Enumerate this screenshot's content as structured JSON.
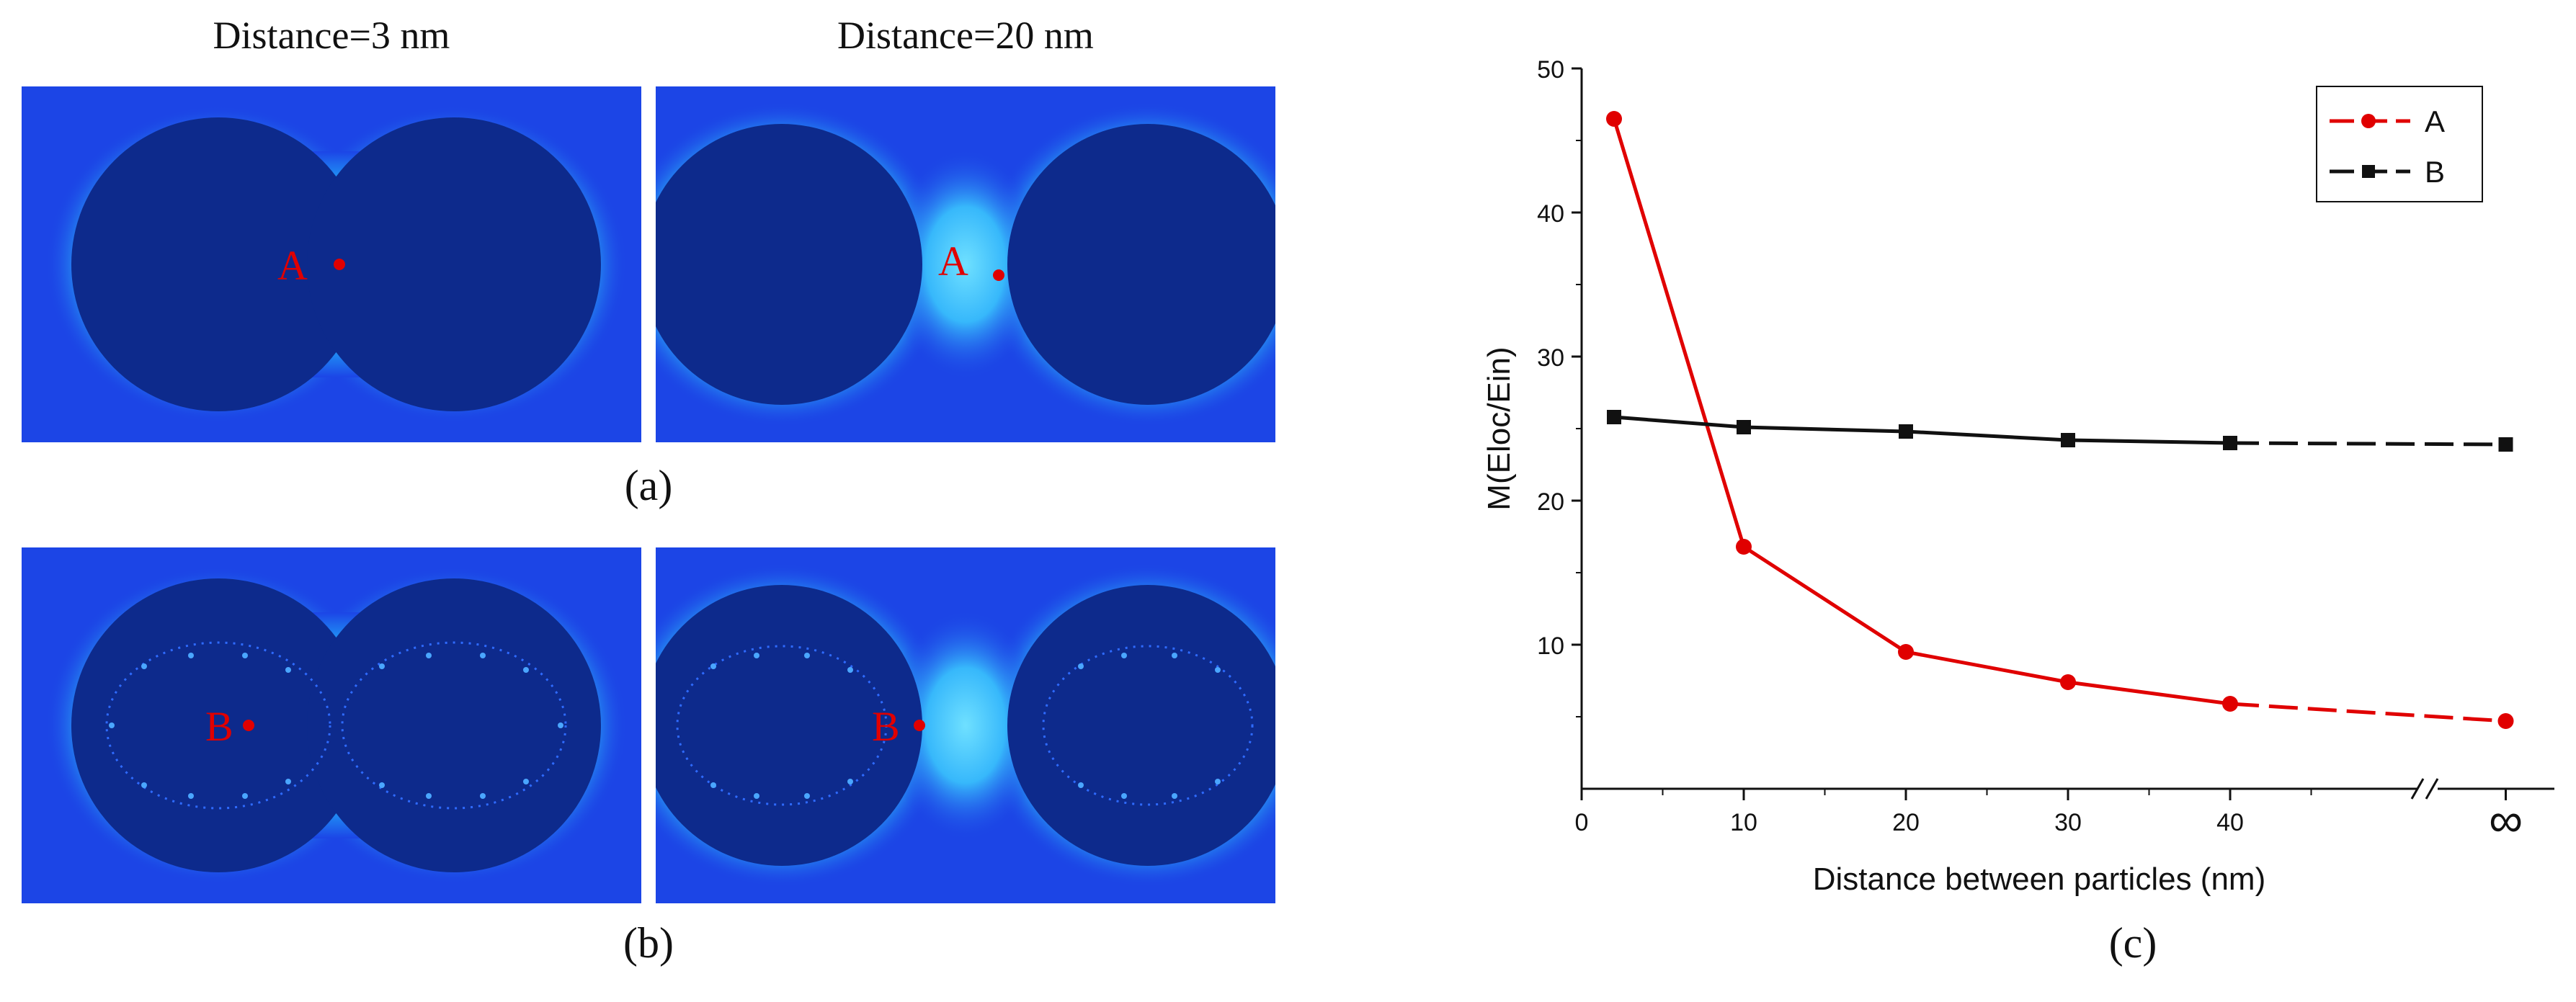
{
  "panels": {
    "col_titles": [
      "Distance=3 nm",
      "Distance=20 nm"
    ],
    "captions": {
      "a": "(a)",
      "b": "(b)",
      "c": "(c)"
    },
    "point_labels": {
      "a": "A",
      "b": "B"
    },
    "colors": {
      "background_field": "#1c45e6",
      "particle": "#0d2a8c",
      "hotspot": "#8b0000",
      "marker": "#e00000"
    }
  },
  "chart_data": {
    "type": "line",
    "xlabel": "Distance between particles (nm)",
    "ylabel": "M(Eloc/Ein)",
    "xlim": [
      0,
      60
    ],
    "ylim": [
      0,
      50
    ],
    "x_ticks": [
      "0",
      "10",
      "20",
      "30",
      "40"
    ],
    "x_tick_values": [
      0,
      10,
      20,
      30,
      40
    ],
    "infinity_label": "∞",
    "y_ticks": [
      "10",
      "20",
      "30",
      "40",
      "50"
    ],
    "y_tick_values": [
      10,
      20,
      30,
      40,
      50
    ],
    "legend_position": "top-right",
    "series": [
      {
        "name": "A",
        "color": "#e00000",
        "marker": "circle",
        "x": [
          2,
          10,
          20,
          30,
          40,
          57
        ],
        "values": [
          46.5,
          16.8,
          9.5,
          7.4,
          5.9,
          4.7
        ]
      },
      {
        "name": "B",
        "color": "#111111",
        "marker": "square",
        "x": [
          2,
          10,
          20,
          30,
          40,
          57
        ],
        "values": [
          25.8,
          25.1,
          24.8,
          24.2,
          24.0,
          23.9
        ]
      }
    ]
  }
}
